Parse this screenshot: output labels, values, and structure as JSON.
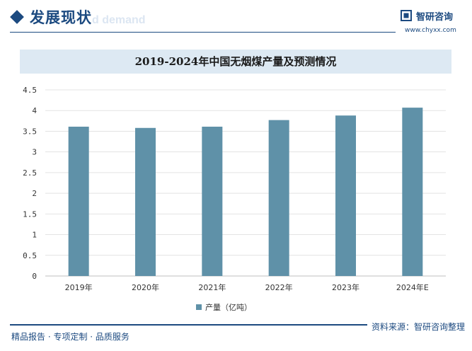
{
  "header": {
    "section_title": "发展现状",
    "section_subtitle": "d demand",
    "logo_name": "智研咨询",
    "logo_url": "www.chyxx.com",
    "accent_color": "#1c4a80"
  },
  "chart_data": {
    "type": "bar",
    "title": "2019-2024年中国无烟煤产量及预测情况",
    "categories": [
      "2019年",
      "2020年",
      "2021年",
      "2022年",
      "2023年",
      "2024年E"
    ],
    "series": [
      {
        "name": "产量（亿吨）",
        "values": [
          3.61,
          3.58,
          3.61,
          3.77,
          3.88,
          4.07
        ],
        "color": "#5f91a8"
      }
    ],
    "yticks": [
      "0",
      "0.5",
      "1",
      "1.5",
      "2",
      "2.5",
      "3",
      "3.5",
      "4",
      "4.5"
    ],
    "ylim": [
      0,
      4.5
    ],
    "grid": true,
    "legend_position": "bottom-center"
  },
  "footer": {
    "left_text": "精品报告 · 专项定制 · 品质服务",
    "right_text": "资料来源：智研咨询整理"
  }
}
